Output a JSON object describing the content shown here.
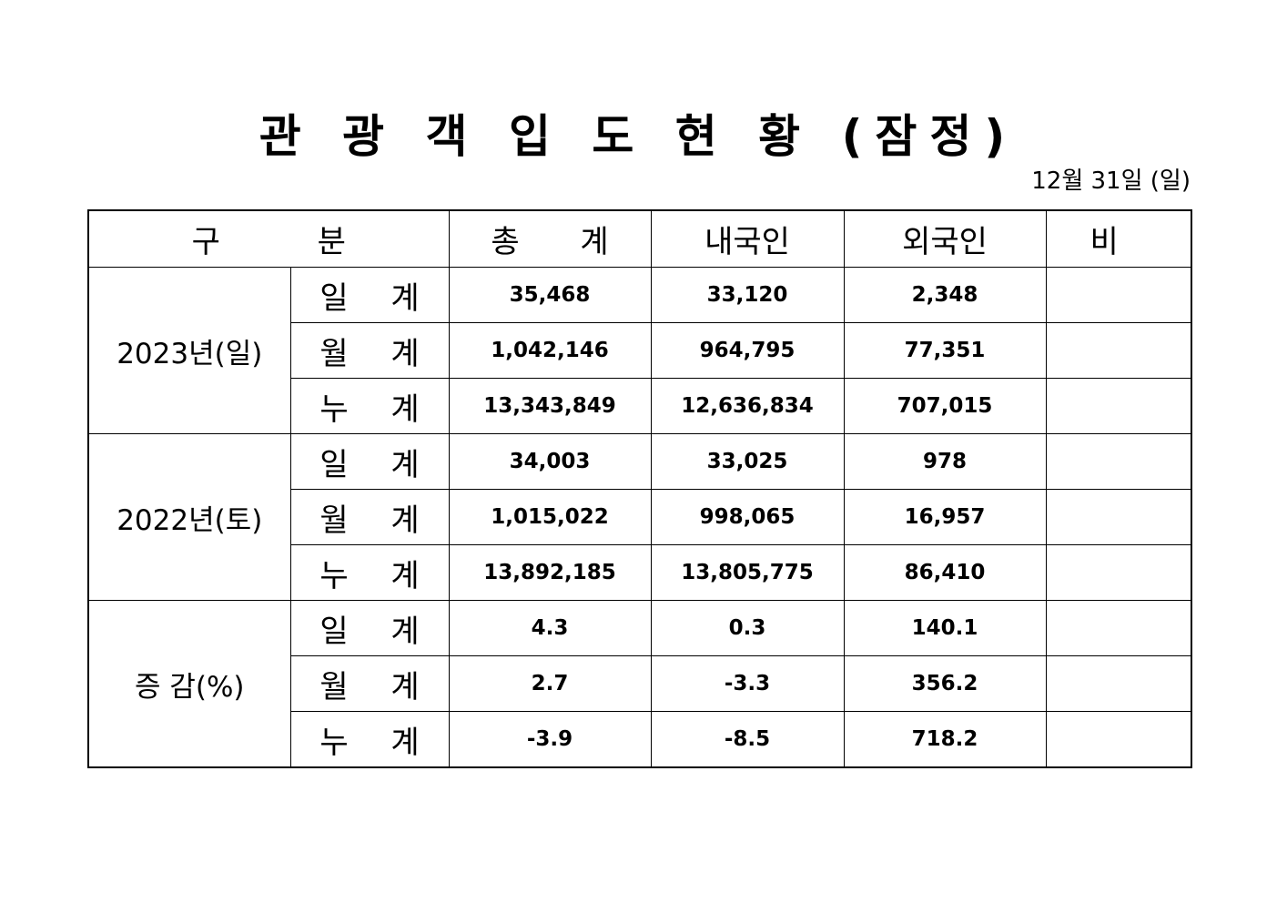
{
  "title": "관 광 객 입 도 현 황 (잠정)",
  "date": "12월 31일 (일)",
  "table": {
    "headers": {
      "category": "구 분",
      "total": "총 계",
      "domestic": "내국인",
      "foreign": "외국인",
      "remarks": "비 고"
    },
    "groups": [
      {
        "label": "2023년(일)",
        "rows": [
          {
            "metric": "일 계",
            "total": "35,468",
            "domestic": "33,120",
            "foreign": "2,348",
            "remarks": ""
          },
          {
            "metric": "월 계",
            "total": "1,042,146",
            "domestic": "964,795",
            "foreign": "77,351",
            "remarks": ""
          },
          {
            "metric": "누 계",
            "total": "13,343,849",
            "domestic": "12,636,834",
            "foreign": "707,015",
            "remarks": ""
          }
        ]
      },
      {
        "label": "2022년(토)",
        "rows": [
          {
            "metric": "일 계",
            "total": "34,003",
            "domestic": "33,025",
            "foreign": "978",
            "remarks": ""
          },
          {
            "metric": "월 계",
            "total": "1,015,022",
            "domestic": "998,065",
            "foreign": "16,957",
            "remarks": ""
          },
          {
            "metric": "누 계",
            "total": "13,892,185",
            "domestic": "13,805,775",
            "foreign": "86,410",
            "remarks": ""
          }
        ]
      },
      {
        "label": "증 감(%)",
        "rows": [
          {
            "metric": "일 계",
            "total": "4.3",
            "domestic": "0.3",
            "foreign": "140.1",
            "remarks": ""
          },
          {
            "metric": "월 계",
            "total": "2.7",
            "domestic": "-3.3",
            "foreign": "356.2",
            "remarks": ""
          },
          {
            "metric": "누 계",
            "total": "-3.9",
            "domestic": "-8.5",
            "foreign": "718.2",
            "remarks": ""
          }
        ]
      }
    ]
  }
}
